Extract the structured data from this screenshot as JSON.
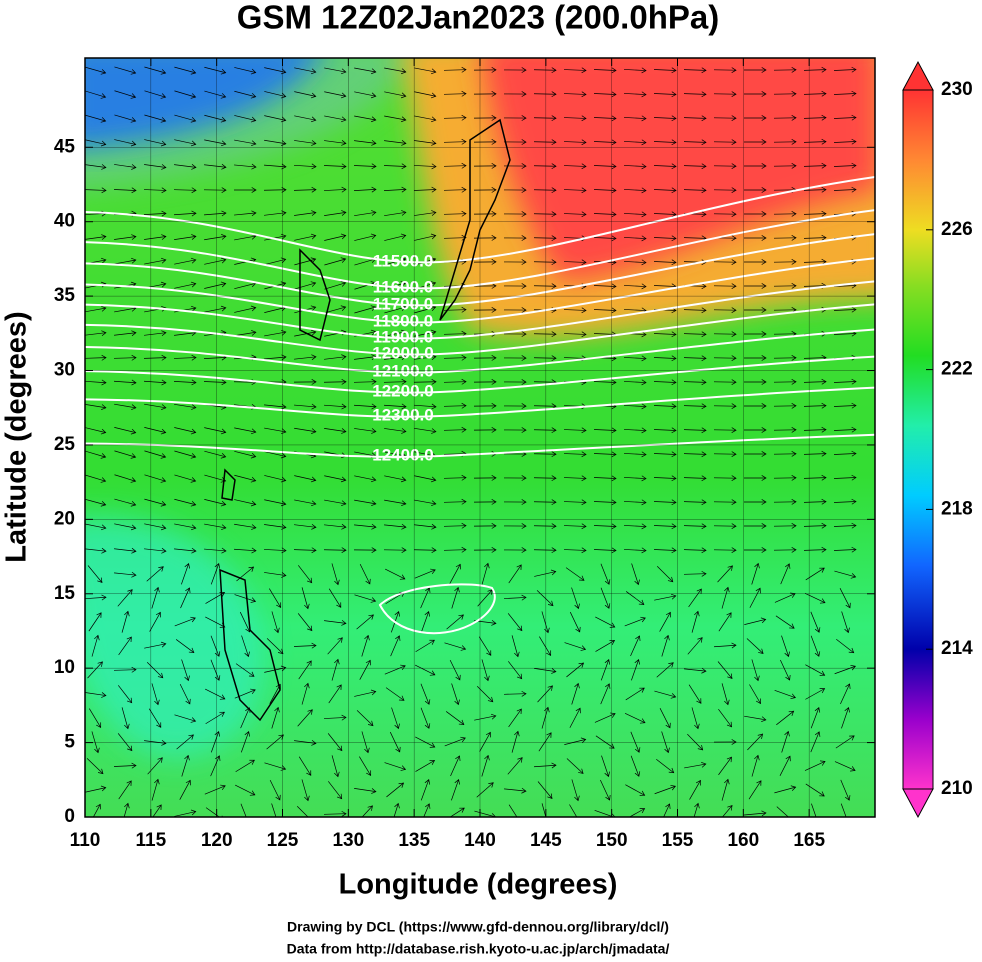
{
  "chart_data": {
    "type": "map",
    "title": "GSM 12Z02Jan2023 (200.0hPa)",
    "x_label": "Longitude (degrees)",
    "y_label": "Latitude  (degrees)",
    "xlim": [
      110,
      170
    ],
    "xticks": [
      110,
      115,
      120,
      125,
      130,
      135,
      140,
      145,
      150,
      155,
      160,
      165
    ],
    "ylim": [
      0,
      51
    ],
    "yticks": [
      0,
      5,
      10,
      15,
      20,
      25,
      30,
      35,
      40,
      45
    ],
    "colorbar": {
      "lim": [
        210,
        230
      ],
      "ticks": [
        210,
        214,
        218,
        222,
        226,
        230
      ]
    },
    "contour_labels": [
      "11500.0",
      "11600.0",
      "11700.0",
      "11800.0",
      "11900.0",
      "12000.0",
      "12100.0",
      "12200.0",
      "12300.0",
      "12400.0"
    ]
  },
  "footer": [
    "Drawing by DCL (https://www.gfd-dennou.org/library/dcl/)",
    "Data from http://database.rish.kyoto-u.ac.jp/arch/jmadata/"
  ]
}
